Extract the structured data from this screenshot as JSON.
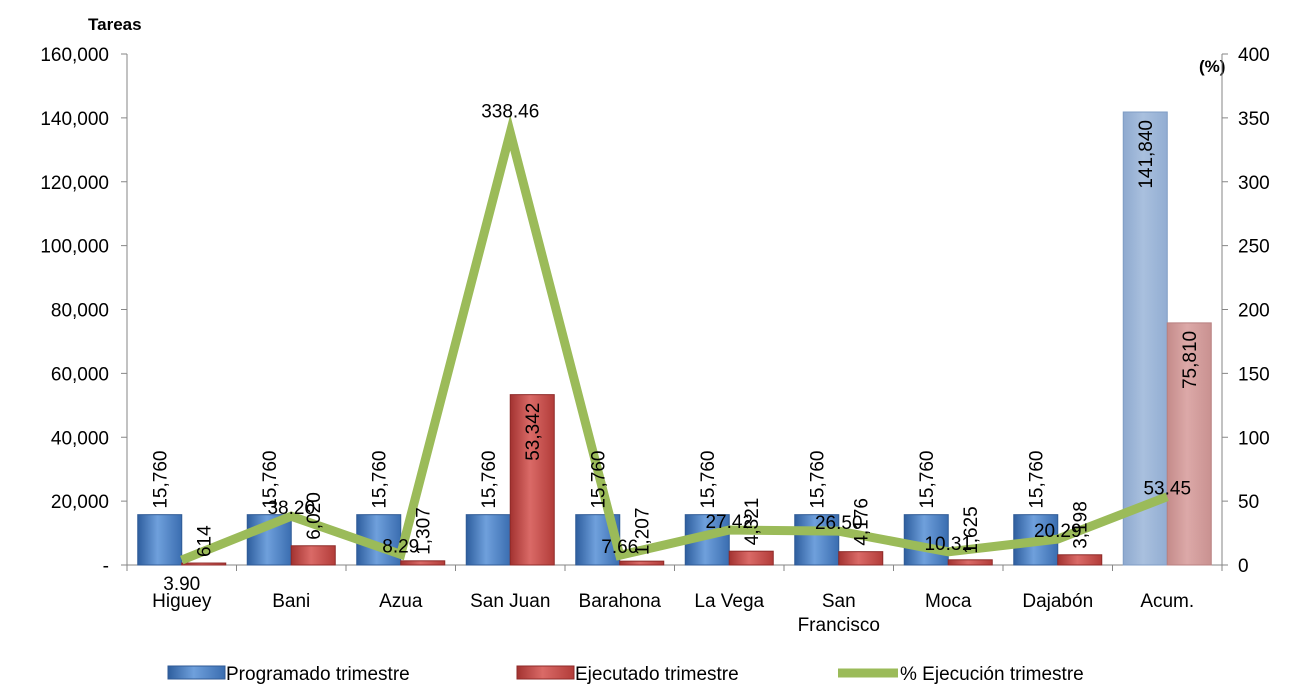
{
  "chart_data": {
    "type": "bar",
    "categories": [
      [
        "Higuey"
      ],
      [
        "Bani"
      ],
      [
        "Azua"
      ],
      [
        "San Juan"
      ],
      [
        "Barahona"
      ],
      [
        "La Vega"
      ],
      [
        "San",
        "Francisco"
      ],
      [
        "Moca"
      ],
      [
        "Dajabón"
      ],
      [
        "Acum."
      ]
    ],
    "series": [
      {
        "name": "Programado trimestre",
        "values": [
          15760,
          15760,
          15760,
          15760,
          15760,
          15760,
          15760,
          15760,
          15760,
          141840
        ],
        "labels": [
          "15,760",
          "15,760",
          "15,760",
          "15,760",
          "15,760",
          "15,760",
          "15,760",
          "15,760",
          "15,760",
          "141,840"
        ],
        "color": "#4F81BD",
        "axis": "left"
      },
      {
        "name": "Ejecutado trimestre",
        "values": [
          614,
          6020,
          1307,
          53342,
          1207,
          4321,
          4176,
          1625,
          3198,
          75810
        ],
        "labels": [
          "614",
          "6,020",
          "1,307",
          "53,342",
          "1,207",
          "4,321",
          "4,176",
          "1,625",
          "3,198",
          "75,810"
        ],
        "color": "#C0504D",
        "axis": "left"
      },
      {
        "name": "% Ejecución trimestre",
        "type": "line",
        "values": [
          3.9,
          38.2,
          8.29,
          338.46,
          7.66,
          27.42,
          26.5,
          10.31,
          20.29,
          53.45
        ],
        "labels": [
          "3.90",
          "38.20",
          "8.29",
          "338.46",
          "7.66",
          "27.42",
          "26.50",
          "10.31",
          "20.29",
          "53.45"
        ],
        "color": "#9BBB59",
        "axis": "right"
      }
    ],
    "ylabel": "Tareas",
    "y2label": "(%)",
    "ylim": [
      0,
      160000
    ],
    "y2lim": [
      0,
      400
    ],
    "yticks": [
      "-",
      "20,000",
      "40,000",
      "60,000",
      "80,000",
      "100,000",
      "120,000",
      "140,000",
      "160,000"
    ],
    "y2ticks": [
      "0",
      "50",
      "100",
      "150",
      "200",
      "250",
      "300",
      "350",
      "400"
    ],
    "grid": false,
    "legend_position": "bottom"
  }
}
